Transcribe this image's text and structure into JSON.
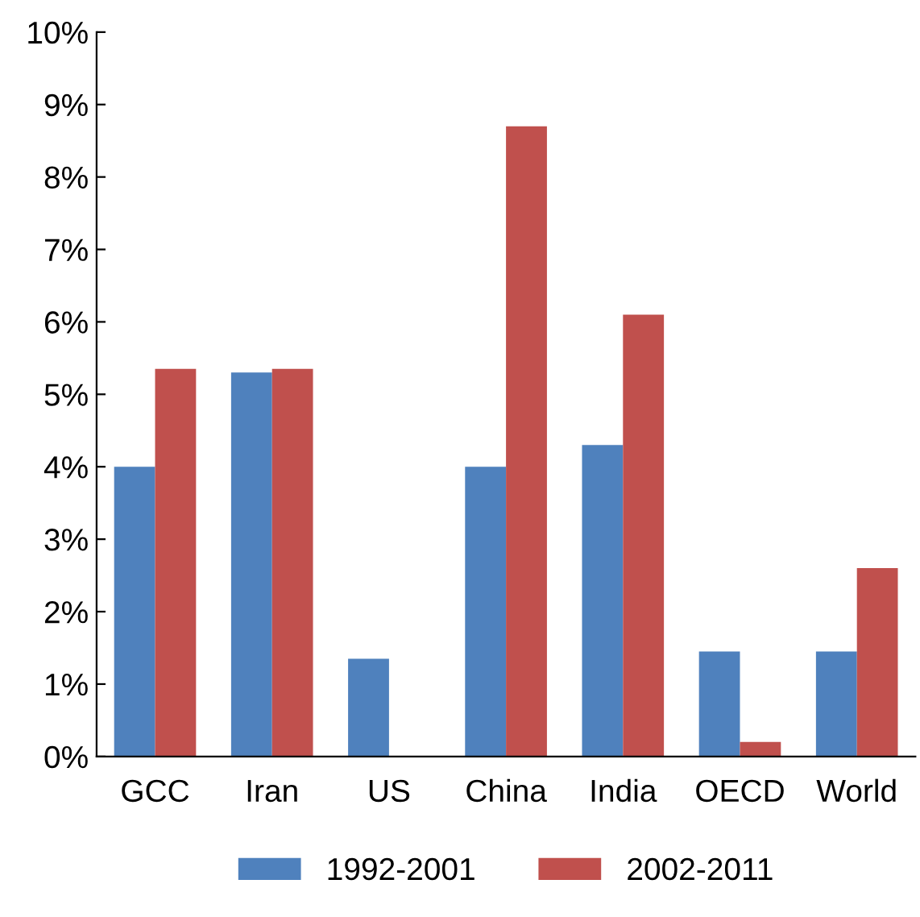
{
  "chart_data": {
    "type": "bar",
    "categories": [
      "GCC",
      "Iran",
      "US",
      "China",
      "India",
      "OECD",
      "World"
    ],
    "series": [
      {
        "name": "1992-2001",
        "color": "#4f81bd",
        "values": [
          4.0,
          5.3,
          1.35,
          4.0,
          4.3,
          1.45,
          1.45
        ]
      },
      {
        "name": "2002-2011",
        "color": "#c0504d",
        "values": [
          5.35,
          5.35,
          0,
          8.7,
          6.1,
          0.2,
          2.6
        ]
      }
    ],
    "ylim": [
      0,
      10
    ],
    "yticks": [
      {
        "value": 0,
        "label": "0%"
      },
      {
        "value": 1,
        "label": "1%"
      },
      {
        "value": 2,
        "label": "2%"
      },
      {
        "value": 3,
        "label": "3%"
      },
      {
        "value": 4,
        "label": "4%"
      },
      {
        "value": 5,
        "label": "5%"
      },
      {
        "value": 6,
        "label": "6%"
      },
      {
        "value": 7,
        "label": "7%"
      },
      {
        "value": 8,
        "label": "8%"
      },
      {
        "value": 9,
        "label": "9%"
      },
      {
        "value": 10,
        "label": "10%"
      }
    ],
    "grid": false,
    "legend": "bottom"
  }
}
